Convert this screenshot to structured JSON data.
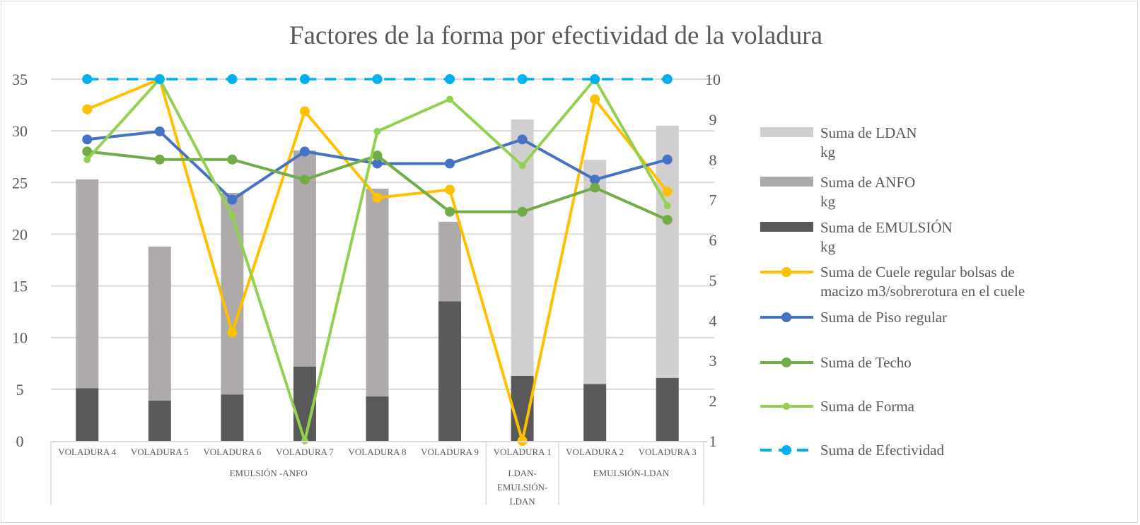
{
  "chart_data": {
    "type": "bar+line",
    "title": "Factores de la forma por efectividad de la voladura",
    "categories": [
      "VOLADURA 4",
      "VOLADURA 5",
      "VOLADURA 6",
      "VOLADURA 7",
      "VOLADURA 8",
      "VOLADURA 9",
      "VOLADURA 1",
      "VOLADURA 2",
      "VOLADURA 3"
    ],
    "groups": [
      {
        "label": "EMULSIÓN -ANFO",
        "span": 6,
        "lines": [
          "EMULSIÓN -ANFO"
        ]
      },
      {
        "label": "LDAN-EMULSIÓN-LDAN",
        "span": 1,
        "lines": [
          "LDAN-",
          "EMULSIÓN-",
          "LDAN"
        ]
      },
      {
        "label": "EMULSIÓN-LDAN",
        "span": 2,
        "lines": [
          "EMULSIÓN-LDAN"
        ]
      }
    ],
    "y_left": {
      "min": 0,
      "max": 35,
      "ticks": [
        0,
        5,
        10,
        15,
        20,
        25,
        30,
        35
      ]
    },
    "y_right": {
      "min": 1,
      "max": 10,
      "ticks": [
        1,
        2,
        3,
        4,
        5,
        6,
        7,
        8,
        9,
        10
      ]
    },
    "grid": true,
    "legend": "right",
    "bar_series": [
      {
        "name": "Suma de EMULSIÓN kg",
        "legend_lines": [
          "Suma de EMULSIÓN",
          "kg"
        ],
        "color": "#595959",
        "values": [
          5.1,
          3.9,
          4.5,
          7.2,
          4.3,
          13.5,
          6.3,
          5.5,
          6.1
        ]
      },
      {
        "name": "Suma de ANFO kg",
        "legend_lines": [
          "Suma de ANFO",
          " kg"
        ],
        "color": "#aeaaaa",
        "values": [
          20.2,
          14.9,
          19.5,
          20.9,
          20.1,
          7.7,
          0,
          0,
          0
        ]
      },
      {
        "name": "Suma de LDAN kg",
        "legend_lines": [
          "Suma de LDAN",
          "kg"
        ],
        "color": "#d0cece",
        "values": [
          0,
          0,
          0,
          0,
          0,
          0,
          24.8,
          21.7,
          24.4
        ]
      }
    ],
    "line_series": [
      {
        "name": "Suma de Cuele regular bolsas de macizo m3/sobrerotura en el cuele",
        "legend_lines": [
          "Suma de Cuele regular bolsas de",
          "macizo m3/sobrerotura en el cuele"
        ],
        "color": "#ffc000",
        "values": [
          9.25,
          10,
          3.7,
          9.2,
          7.05,
          7.25,
          1,
          9.5,
          7.2
        ]
      },
      {
        "name": "Suma de Piso regular",
        "legend_lines": [
          "Suma de Piso regular"
        ],
        "color": "#4472c4",
        "values": [
          8.5,
          8.7,
          7.0,
          8.2,
          7.9,
          7.9,
          8.5,
          7.5,
          8.0
        ]
      },
      {
        "name": "Suma de Techo",
        "legend_lines": [
          "Suma de Techo"
        ],
        "color": "#70ad47",
        "values": [
          8.2,
          8.0,
          8.0,
          7.5,
          8.1,
          6.7,
          6.7,
          7.3,
          6.5
        ]
      },
      {
        "name": "Suma de Forma",
        "legend_lines": [
          "Suma de Forma"
        ],
        "color": "#92d050",
        "values": [
          8.0,
          10,
          6.6,
          1,
          8.7,
          9.5,
          7.85,
          10,
          6.85
        ],
        "small_markers": true
      },
      {
        "name": "Suma de Efectividad",
        "legend_lines": [
          "Suma de Efectividad"
        ],
        "color": "#00b0f0",
        "values": [
          10,
          10,
          10,
          10,
          10,
          10,
          10,
          10,
          10
        ],
        "dashed": true
      }
    ],
    "legend_order": [
      "Suma de LDAN kg",
      "Suma de ANFO kg",
      "Suma de EMULSIÓN kg",
      "Suma de Cuele regular bolsas de macizo m3/sobrerotura en el cuele",
      "Suma de Piso regular",
      "Suma de Techo",
      "Suma de Forma",
      "Suma de Efectividad"
    ]
  }
}
